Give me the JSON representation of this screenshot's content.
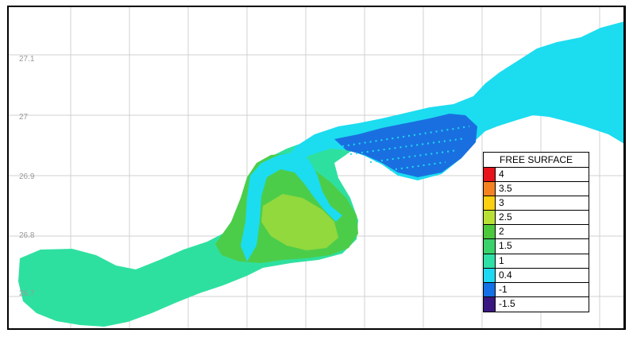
{
  "map": {
    "y_axis_labels": [
      "27.1",
      "27",
      "26.9",
      "26.8",
      "26.7"
    ],
    "grid": true
  },
  "legend": {
    "title": "FREE SURFACE",
    "items": [
      {
        "label": "4",
        "color": "#e8141c"
      },
      {
        "label": "3.5",
        "color": "#f58220"
      },
      {
        "label": "3",
        "color": "#fccf10"
      },
      {
        "label": "2.5",
        "color": "#b9e135"
      },
      {
        "label": "2",
        "color": "#4cc83c"
      },
      {
        "label": "1.5",
        "color": "#3ad26b"
      },
      {
        "label": "1",
        "color": "#2ee0a6"
      },
      {
        "label": "0.4",
        "color": "#1fd9f2"
      },
      {
        "label": "-1",
        "color": "#1470e6"
      },
      {
        "label": "-1.5",
        "color": "#3a1780"
      }
    ]
  },
  "colors": {
    "cyan": "#1cdcf0",
    "aqua_green": "#2ee0a0",
    "green": "#4ccd4a",
    "yellow_green": "#a8dc3a",
    "blue": "#1a6fe0",
    "grid": "#cfcfcf"
  }
}
